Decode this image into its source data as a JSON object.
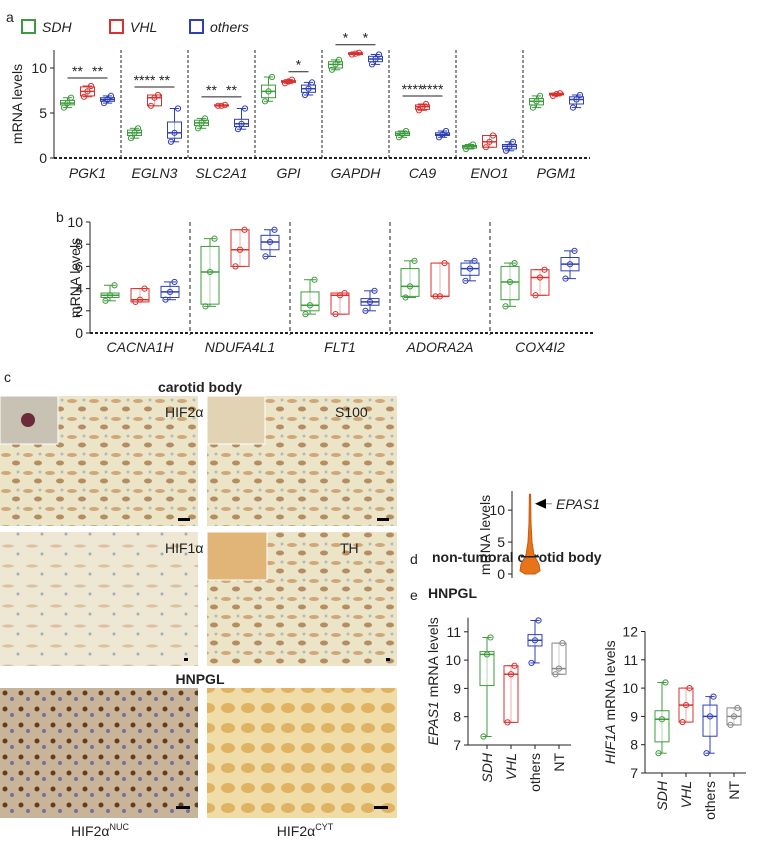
{
  "panel_a": {
    "label": "a",
    "legend": [
      {
        "name": "SDH",
        "color": "#3d9b3d"
      },
      {
        "name": "VHL",
        "color": "#d9312f"
      },
      {
        "name": "others",
        "color": "#2f3fb4"
      }
    ],
    "y_label": "mRNA levels",
    "ylim": [
      0,
      12
    ],
    "yticks": [
      0,
      5,
      10
    ],
    "genes": [
      {
        "name": "PGK1",
        "groups": [
          [
            5.6,
            5.9,
            6.1,
            6.4,
            6.7
          ],
          [
            6.8,
            6.9,
            7.4,
            7.9,
            8.0
          ],
          [
            6.1,
            6.3,
            6.5,
            6.7,
            6.9
          ]
        ],
        "significance": [
          "**",
          "**"
        ]
      },
      {
        "name": "EGLN3",
        "groups": [
          [
            2.2,
            2.5,
            2.8,
            3.1,
            3.3
          ],
          [
            5.8,
            5.8,
            6.7,
            7.0,
            7.0
          ],
          [
            1.8,
            2.2,
            2.8,
            4.0,
            5.5
          ]
        ],
        "significance": [
          "****",
          "**"
        ]
      },
      {
        "name": "SLC2A1",
        "groups": [
          [
            3.3,
            3.6,
            3.9,
            4.2,
            4.4
          ],
          [
            5.8,
            5.8,
            5.8,
            5.9,
            5.9
          ],
          [
            3.2,
            3.5,
            3.8,
            4.3,
            5.5
          ]
        ],
        "significance": [
          "**",
          "**"
        ]
      },
      {
        "name": "GPI",
        "groups": [
          [
            6.3,
            6.7,
            7.4,
            8.1,
            9.0
          ],
          [
            8.3,
            8.4,
            8.5,
            8.6,
            8.7
          ],
          [
            7.0,
            7.3,
            7.7,
            8.1,
            8.4
          ]
        ],
        "significance": [
          null,
          "*"
        ]
      },
      {
        "name": "GAPDH",
        "groups": [
          [
            9.8,
            10.0,
            10.4,
            10.7,
            10.9
          ],
          [
            11.5,
            11.5,
            11.6,
            11.7,
            11.7
          ],
          [
            10.4,
            10.7,
            11.0,
            11.3,
            11.5
          ]
        ],
        "significance": [
          "*",
          "*"
        ]
      },
      {
        "name": "CA9",
        "groups": [
          [
            2.3,
            2.5,
            2.7,
            2.9,
            3.0
          ],
          [
            5.3,
            5.4,
            5.7,
            5.9,
            6.0
          ],
          [
            2.3,
            2.5,
            2.6,
            2.8,
            3.0
          ]
        ],
        "significance": [
          "****",
          "****"
        ]
      },
      {
        "name": "ENO1",
        "groups": [
          [
            1.0,
            1.1,
            1.3,
            1.4,
            1.5
          ],
          [
            1.2,
            1.2,
            1.8,
            2.5,
            2.5
          ],
          [
            0.8,
            1.0,
            1.3,
            1.5,
            1.8
          ]
        ],
        "significance": [
          null,
          null
        ]
      },
      {
        "name": "PGM1",
        "groups": [
          [
            5.6,
            5.9,
            6.3,
            6.6,
            6.9
          ],
          [
            6.9,
            7.0,
            7.1,
            7.2,
            7.2
          ],
          [
            5.6,
            6.0,
            6.5,
            6.8,
            7.0
          ]
        ],
        "significance": [
          null,
          null
        ]
      }
    ]
  },
  "panel_b": {
    "label": "b",
    "y_label": "mRNA levels",
    "ylim": [
      0,
      10
    ],
    "yticks": [
      0,
      2,
      4,
      6,
      8,
      10
    ],
    "genes": [
      {
        "name": "CACNA1H",
        "groups": [
          [
            2.9,
            3.2,
            3.4,
            3.6,
            4.3
          ],
          [
            2.8,
            2.8,
            3.0,
            4.0,
            4.0
          ],
          [
            3.0,
            3.2,
            3.7,
            4.2,
            4.6
          ]
        ]
      },
      {
        "name": "NDUFA4L1",
        "groups": [
          [
            2.4,
            2.6,
            5.5,
            7.8,
            8.5
          ],
          [
            6.0,
            6.0,
            7.5,
            9.3,
            9.3
          ],
          [
            6.9,
            7.5,
            8.2,
            8.8,
            9.3
          ]
        ]
      },
      {
        "name": "FLT1",
        "groups": [
          [
            1.7,
            2.0,
            2.5,
            3.7,
            4.8
          ],
          [
            1.7,
            1.7,
            3.4,
            3.6,
            3.6
          ],
          [
            2.0,
            2.5,
            2.8,
            3.1,
            3.8
          ]
        ]
      },
      {
        "name": "ADORA2A",
        "groups": [
          [
            3.2,
            3.3,
            4.2,
            5.8,
            6.5
          ],
          [
            3.3,
            3.3,
            3.3,
            6.3,
            6.3
          ],
          [
            4.7,
            5.2,
            5.8,
            6.3,
            6.5
          ]
        ]
      },
      {
        "name": "COX4I2",
        "groups": [
          [
            2.4,
            3.0,
            4.6,
            6.0,
            6.3
          ],
          [
            3.4,
            3.4,
            5.0,
            5.7,
            5.7
          ],
          [
            4.9,
            5.6,
            6.2,
            6.8,
            7.4
          ]
        ]
      }
    ]
  },
  "panel_c": {
    "label": "c",
    "title": "carotid body",
    "stains": [
      "HIF2α",
      "S100",
      "HIF1α",
      "TH"
    ],
    "subtitle": "HNPGL",
    "bottom": [
      {
        "base": "HIF2α",
        "sup": "NUC"
      },
      {
        "base": "HIF2α",
        "sup": "CYT"
      }
    ]
  },
  "panel_d": {
    "label": "d",
    "title": "non-tumoral carotid body",
    "y_label": "mRNA levels",
    "ylim": [
      0,
      13
    ],
    "yticks": [
      0,
      5,
      10
    ],
    "max": 12.5,
    "mean": 2.7,
    "annotation": "EPAS1",
    "annotation_value": 11
  },
  "panel_e": {
    "label": "e",
    "title": "HNPGL",
    "categories": [
      "SDH",
      "VHL",
      "others",
      "NT"
    ],
    "colors": [
      "#3d9b3d",
      "#d9312f",
      "#2f3fb4",
      "#888888"
    ],
    "plots": [
      {
        "gene": "EPAS1",
        "y_label": "mRNA levels",
        "ylim": [
          7,
          11.5
        ],
        "yticks": [
          7,
          8,
          9,
          10,
          11
        ],
        "groups": [
          [
            7.3,
            9.1,
            10.2,
            10.3,
            10.8
          ],
          [
            7.8,
            7.8,
            9.5,
            9.8,
            9.8
          ],
          [
            9.9,
            10.5,
            10.7,
            10.9,
            11.4
          ],
          [
            9.5,
            9.5,
            9.7,
            10.6,
            10.6
          ]
        ]
      },
      {
        "gene": "HIF1A",
        "y_label": "mRNA levels",
        "ylim": [
          7,
          12
        ],
        "yticks": [
          7,
          8,
          9,
          10,
          11,
          12
        ],
        "groups": [
          [
            7.7,
            8.1,
            8.9,
            9.2,
            10.2
          ],
          [
            8.8,
            8.8,
            9.4,
            10.0,
            10.0
          ],
          [
            7.7,
            8.3,
            9.0,
            9.4,
            9.7
          ],
          [
            8.7,
            8.7,
            9.0,
            9.3,
            9.3
          ]
        ]
      }
    ]
  }
}
